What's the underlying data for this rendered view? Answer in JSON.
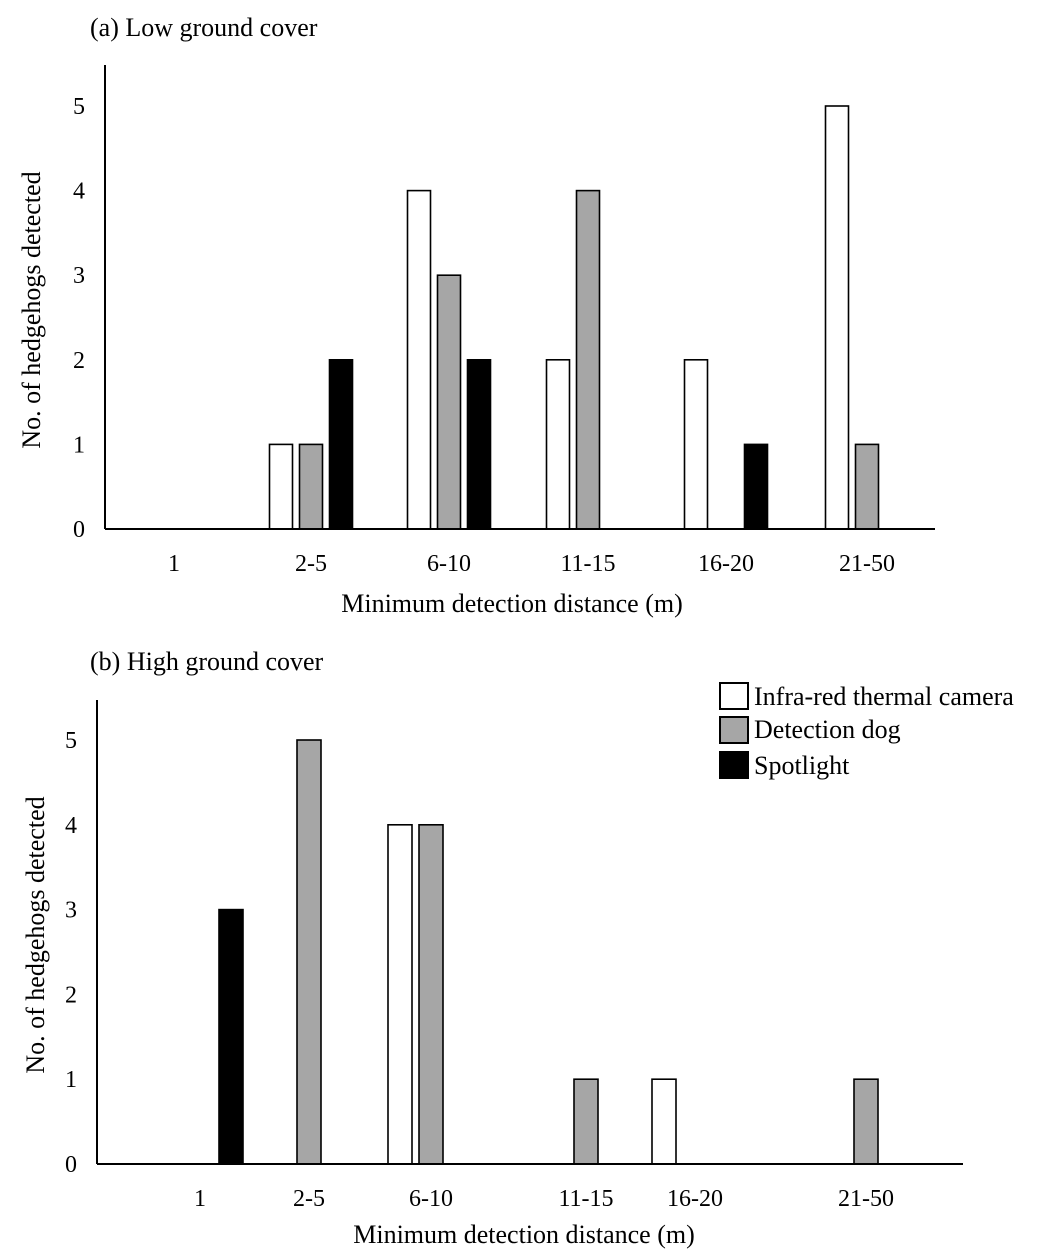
{
  "figure": {
    "legend": {
      "placement": "top-right of panel b",
      "items": [
        {
          "label": "Infra-red thermal camera",
          "color": "#ffffff"
        },
        {
          "label": "Detection dog",
          "color": "#a6a6a6"
        },
        {
          "label": "Spotlight",
          "color": "#000000"
        }
      ]
    }
  },
  "chart_data": [
    {
      "type": "bar",
      "title": "(a) Low ground cover",
      "xlabel": "Minimum detection distance (m)",
      "ylabel": "No. of hedgehogs detected",
      "ylim": [
        0,
        5
      ],
      "yticks": [
        0,
        1,
        2,
        3,
        4,
        5
      ],
      "grid": false,
      "categories": [
        "1",
        "2-5",
        "6-10",
        "11-15",
        "16-20",
        "21-50"
      ],
      "series": [
        {
          "name": "Infra-red thermal camera",
          "color": "#ffffff",
          "values": [
            0,
            1,
            4,
            2,
            2,
            5
          ]
        },
        {
          "name": "Detection dog",
          "color": "#a6a6a6",
          "values": [
            0,
            1,
            3,
            4,
            0,
            1
          ]
        },
        {
          "name": "Spotlight",
          "color": "#000000",
          "values": [
            0,
            2,
            2,
            0,
            1,
            0
          ]
        }
      ]
    },
    {
      "type": "bar",
      "title": "(b) High ground cover",
      "xlabel": "Minimum detection distance (m)",
      "ylabel": "No. of hedgehogs detected",
      "ylim": [
        0,
        5
      ],
      "yticks": [
        0,
        1,
        2,
        3,
        4,
        5
      ],
      "grid": false,
      "categories": [
        "1",
        "2-5",
        "6-10",
        "11-15",
        "16-20",
        "21-50"
      ],
      "series": [
        {
          "name": "Infra-red thermal camera",
          "color": "#ffffff",
          "values": [
            0,
            0,
            4,
            0,
            1,
            0
          ]
        },
        {
          "name": "Detection dog",
          "color": "#a6a6a6",
          "values": [
            0,
            5,
            4,
            1,
            0,
            1
          ]
        },
        {
          "name": "Spotlight",
          "color": "#000000",
          "values": [
            3,
            0,
            0,
            0,
            0,
            0
          ]
        }
      ]
    }
  ]
}
